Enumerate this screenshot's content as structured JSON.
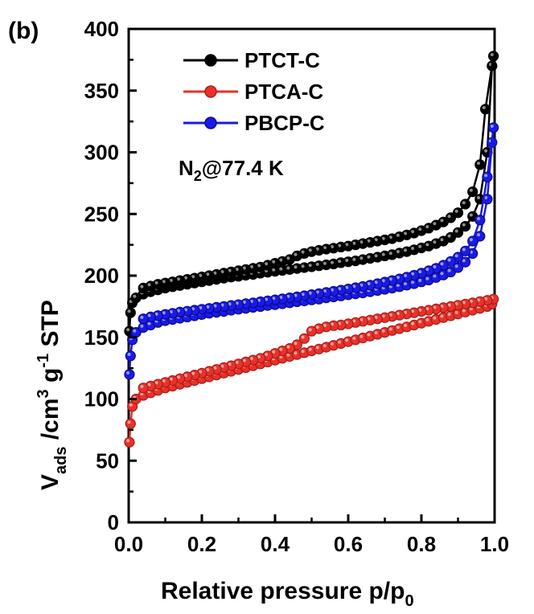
{
  "chart_data": {
    "type": "line",
    "panel_label": "(b)",
    "annotation": {
      "main": "N",
      "sub": "2",
      "rest": "@77.4 K"
    },
    "xlabel": {
      "main": "Relative pressure p/p",
      "sub": "0"
    },
    "ylabel": {
      "v": "V",
      "ads": "ads",
      "mid": " /cm",
      "sup3": "3",
      "g": " g",
      "supm1": "-1",
      "stp": " STP"
    },
    "xlim": [
      0,
      1.0
    ],
    "ylim": [
      0,
      400
    ],
    "xticks": [
      "0.0",
      "0.2",
      "0.4",
      "0.6",
      "0.8",
      "1.0"
    ],
    "yticks": [
      "0",
      "50",
      "100",
      "150",
      "200",
      "250",
      "300",
      "350",
      "400"
    ],
    "legend_position": "top-left",
    "series": [
      {
        "name": "PTCT-C",
        "color": "#000000",
        "adsorption": [
          [
            0.002,
            155
          ],
          [
            0.005,
            170
          ],
          [
            0.01,
            178
          ],
          [
            0.02,
            182
          ],
          [
            0.04,
            185
          ],
          [
            0.06,
            187
          ],
          [
            0.08,
            188.5
          ],
          [
            0.1,
            190
          ],
          [
            0.12,
            191
          ],
          [
            0.14,
            192
          ],
          [
            0.16,
            193
          ],
          [
            0.18,
            194
          ],
          [
            0.2,
            195
          ],
          [
            0.22,
            196
          ],
          [
            0.24,
            197
          ],
          [
            0.26,
            198
          ],
          [
            0.28,
            198.8
          ],
          [
            0.3,
            199.5
          ],
          [
            0.32,
            200.3
          ],
          [
            0.34,
            201
          ],
          [
            0.36,
            202
          ],
          [
            0.38,
            202.8
          ],
          [
            0.4,
            203.5
          ],
          [
            0.42,
            204.3
          ],
          [
            0.44,
            205
          ],
          [
            0.46,
            205.8
          ],
          [
            0.48,
            206.5
          ],
          [
            0.5,
            207.2
          ],
          [
            0.52,
            208
          ],
          [
            0.54,
            208.8
          ],
          [
            0.56,
            209.5
          ],
          [
            0.58,
            210.5
          ],
          [
            0.6,
            211.3
          ],
          [
            0.62,
            212
          ],
          [
            0.64,
            213
          ],
          [
            0.66,
            214
          ],
          [
            0.68,
            215
          ],
          [
            0.7,
            216
          ],
          [
            0.72,
            217
          ],
          [
            0.74,
            218.3
          ],
          [
            0.76,
            219.5
          ],
          [
            0.78,
            221
          ],
          [
            0.8,
            222.5
          ],
          [
            0.82,
            224
          ],
          [
            0.84,
            226
          ],
          [
            0.86,
            228
          ],
          [
            0.88,
            231
          ],
          [
            0.9,
            235
          ],
          [
            0.92,
            240
          ],
          [
            0.94,
            248
          ],
          [
            0.96,
            262
          ],
          [
            0.98,
            300
          ],
          [
            0.993,
            370
          ]
        ],
        "desorption": [
          [
            0.997,
            378
          ],
          [
            0.975,
            335
          ],
          [
            0.96,
            290
          ],
          [
            0.94,
            268
          ],
          [
            0.92,
            258
          ],
          [
            0.9,
            251
          ],
          [
            0.88,
            247
          ],
          [
            0.86,
            243.5
          ],
          [
            0.84,
            241
          ],
          [
            0.82,
            238.5
          ],
          [
            0.8,
            236.5
          ],
          [
            0.78,
            234.5
          ],
          [
            0.76,
            233
          ],
          [
            0.74,
            231.5
          ],
          [
            0.72,
            230
          ],
          [
            0.7,
            229
          ],
          [
            0.68,
            228
          ],
          [
            0.66,
            227
          ],
          [
            0.64,
            226
          ],
          [
            0.62,
            225
          ],
          [
            0.6,
            224
          ],
          [
            0.58,
            223.2
          ],
          [
            0.56,
            222.3
          ],
          [
            0.54,
            221.5
          ],
          [
            0.52,
            220.5
          ],
          [
            0.5,
            219.5
          ],
          [
            0.48,
            218
          ],
          [
            0.46,
            216
          ],
          [
            0.44,
            213
          ],
          [
            0.42,
            211.5
          ],
          [
            0.4,
            210
          ],
          [
            0.38,
            208.5
          ],
          [
            0.36,
            207
          ],
          [
            0.34,
            206
          ],
          [
            0.32,
            205
          ],
          [
            0.3,
            204
          ],
          [
            0.28,
            203
          ],
          [
            0.26,
            202
          ],
          [
            0.24,
            201
          ],
          [
            0.22,
            200
          ],
          [
            0.2,
            199
          ],
          [
            0.18,
            198
          ],
          [
            0.16,
            197
          ],
          [
            0.14,
            196
          ],
          [
            0.12,
            195
          ],
          [
            0.1,
            194
          ],
          [
            0.08,
            193
          ],
          [
            0.06,
            191.5
          ],
          [
            0.04,
            190
          ]
        ]
      },
      {
        "name": "PTCA-C",
        "color": "#e8312a",
        "adsorption": [
          [
            0.002,
            65
          ],
          [
            0.005,
            80
          ],
          [
            0.01,
            94
          ],
          [
            0.02,
            100
          ],
          [
            0.04,
            103
          ],
          [
            0.06,
            105
          ],
          [
            0.08,
            107
          ],
          [
            0.1,
            109
          ],
          [
            0.12,
            110.5
          ],
          [
            0.14,
            112
          ],
          [
            0.16,
            113.5
          ],
          [
            0.18,
            115
          ],
          [
            0.2,
            116.5
          ],
          [
            0.22,
            118
          ],
          [
            0.24,
            119.5
          ],
          [
            0.26,
            121
          ],
          [
            0.28,
            122.5
          ],
          [
            0.3,
            124
          ],
          [
            0.32,
            125.5
          ],
          [
            0.34,
            127
          ],
          [
            0.36,
            128.5
          ],
          [
            0.38,
            130
          ],
          [
            0.4,
            131.5
          ],
          [
            0.42,
            133
          ],
          [
            0.44,
            134.5
          ],
          [
            0.46,
            136
          ],
          [
            0.48,
            137.5
          ],
          [
            0.5,
            139
          ],
          [
            0.52,
            140.5
          ],
          [
            0.54,
            142
          ],
          [
            0.56,
            143.5
          ],
          [
            0.58,
            145
          ],
          [
            0.6,
            146.5
          ],
          [
            0.62,
            148
          ],
          [
            0.64,
            149.5
          ],
          [
            0.66,
            151
          ],
          [
            0.68,
            152.5
          ],
          [
            0.7,
            154
          ],
          [
            0.72,
            155.5
          ],
          [
            0.74,
            157
          ],
          [
            0.76,
            158.5
          ],
          [
            0.78,
            160
          ],
          [
            0.8,
            161.5
          ],
          [
            0.82,
            163
          ],
          [
            0.84,
            164.5
          ],
          [
            0.86,
            166
          ],
          [
            0.88,
            167.5
          ],
          [
            0.9,
            169
          ],
          [
            0.92,
            170.5
          ],
          [
            0.94,
            172
          ],
          [
            0.96,
            173.5
          ],
          [
            0.98,
            175
          ],
          [
            0.993,
            177
          ]
        ],
        "desorption": [
          [
            0.997,
            181
          ],
          [
            0.98,
            180
          ],
          [
            0.96,
            179
          ],
          [
            0.94,
            178
          ],
          [
            0.92,
            177
          ],
          [
            0.9,
            176
          ],
          [
            0.88,
            175
          ],
          [
            0.86,
            174
          ],
          [
            0.84,
            173
          ],
          [
            0.82,
            172
          ],
          [
            0.8,
            171
          ],
          [
            0.78,
            170
          ],
          [
            0.76,
            169
          ],
          [
            0.74,
            168
          ],
          [
            0.72,
            167
          ],
          [
            0.7,
            166
          ],
          [
            0.68,
            165
          ],
          [
            0.66,
            164
          ],
          [
            0.64,
            163
          ],
          [
            0.62,
            162
          ],
          [
            0.6,
            161
          ],
          [
            0.58,
            160
          ],
          [
            0.56,
            159.5
          ],
          [
            0.54,
            158.5
          ],
          [
            0.52,
            157
          ],
          [
            0.5,
            155
          ],
          [
            0.48,
            149
          ],
          [
            0.46,
            144
          ],
          [
            0.44,
            141
          ],
          [
            0.42,
            139
          ],
          [
            0.4,
            137
          ],
          [
            0.38,
            135
          ],
          [
            0.36,
            133
          ],
          [
            0.34,
            131.5
          ],
          [
            0.32,
            130
          ],
          [
            0.3,
            128.5
          ],
          [
            0.28,
            127
          ],
          [
            0.26,
            125.5
          ],
          [
            0.24,
            124
          ],
          [
            0.22,
            122.5
          ],
          [
            0.2,
            121
          ],
          [
            0.18,
            119.5
          ],
          [
            0.16,
            118
          ],
          [
            0.14,
            116.5
          ],
          [
            0.12,
            115
          ],
          [
            0.1,
            113.5
          ],
          [
            0.08,
            112
          ],
          [
            0.06,
            110.5
          ],
          [
            0.04,
            109
          ]
        ]
      },
      {
        "name": "PBCP-C",
        "color": "#1a1ae6",
        "adsorption": [
          [
            0.002,
            120
          ],
          [
            0.005,
            135
          ],
          [
            0.01,
            148
          ],
          [
            0.02,
            154
          ],
          [
            0.04,
            158
          ],
          [
            0.06,
            160
          ],
          [
            0.08,
            162
          ],
          [
            0.1,
            163.5
          ],
          [
            0.12,
            164.5
          ],
          [
            0.14,
            165.5
          ],
          [
            0.16,
            166.5
          ],
          [
            0.18,
            167.5
          ],
          [
            0.2,
            168.5
          ],
          [
            0.22,
            169.5
          ],
          [
            0.24,
            170.3
          ],
          [
            0.26,
            171
          ],
          [
            0.28,
            172
          ],
          [
            0.3,
            172.8
          ],
          [
            0.32,
            173.5
          ],
          [
            0.34,
            174.3
          ],
          [
            0.36,
            175
          ],
          [
            0.38,
            175.8
          ],
          [
            0.4,
            176.5
          ],
          [
            0.42,
            177.2
          ],
          [
            0.44,
            178
          ],
          [
            0.46,
            178.8
          ],
          [
            0.48,
            179.5
          ],
          [
            0.5,
            180.3
          ],
          [
            0.52,
            181
          ],
          [
            0.54,
            182
          ],
          [
            0.56,
            182.8
          ],
          [
            0.58,
            183.5
          ],
          [
            0.6,
            184.5
          ],
          [
            0.62,
            185.3
          ],
          [
            0.64,
            186
          ],
          [
            0.66,
            187
          ],
          [
            0.68,
            188
          ],
          [
            0.7,
            189
          ],
          [
            0.72,
            190
          ],
          [
            0.74,
            191
          ],
          [
            0.76,
            192.3
          ],
          [
            0.78,
            193.5
          ],
          [
            0.8,
            195
          ],
          [
            0.82,
            196.5
          ],
          [
            0.84,
            198.5
          ],
          [
            0.86,
            200.5
          ],
          [
            0.88,
            203
          ],
          [
            0.9,
            206.5
          ],
          [
            0.92,
            211
          ],
          [
            0.94,
            218
          ],
          [
            0.96,
            232
          ],
          [
            0.98,
            262
          ],
          [
            0.993,
            308
          ]
        ],
        "desorption": [
          [
            0.997,
            320
          ],
          [
            0.98,
            280
          ],
          [
            0.96,
            245
          ],
          [
            0.94,
            228
          ],
          [
            0.92,
            220
          ],
          [
            0.9,
            215
          ],
          [
            0.88,
            211.5
          ],
          [
            0.86,
            208.5
          ],
          [
            0.84,
            206
          ],
          [
            0.82,
            204
          ],
          [
            0.8,
            202
          ],
          [
            0.78,
            200.3
          ],
          [
            0.76,
            198.8
          ],
          [
            0.74,
            197.3
          ],
          [
            0.72,
            196
          ],
          [
            0.7,
            194.8
          ],
          [
            0.68,
            193.5
          ],
          [
            0.66,
            192.3
          ],
          [
            0.64,
            191.2
          ],
          [
            0.62,
            190.2
          ],
          [
            0.6,
            189.2
          ],
          [
            0.58,
            188.2
          ],
          [
            0.56,
            187.3
          ],
          [
            0.54,
            186.4
          ],
          [
            0.52,
            185.5
          ],
          [
            0.5,
            184.6
          ],
          [
            0.48,
            183.7
          ],
          [
            0.46,
            182.8
          ],
          [
            0.44,
            182
          ],
          [
            0.42,
            181.2
          ],
          [
            0.4,
            180.4
          ],
          [
            0.38,
            179.6
          ],
          [
            0.36,
            178.8
          ],
          [
            0.34,
            178
          ],
          [
            0.32,
            177.3
          ],
          [
            0.3,
            176.5
          ],
          [
            0.28,
            175.8
          ],
          [
            0.26,
            175
          ],
          [
            0.24,
            174.3
          ],
          [
            0.22,
            173.5
          ],
          [
            0.2,
            172.8
          ],
          [
            0.18,
            172
          ],
          [
            0.16,
            171.2
          ],
          [
            0.14,
            170.4
          ],
          [
            0.12,
            169.5
          ],
          [
            0.1,
            168.6
          ],
          [
            0.08,
            167.6
          ],
          [
            0.06,
            166.5
          ],
          [
            0.04,
            165
          ]
        ]
      }
    ]
  }
}
